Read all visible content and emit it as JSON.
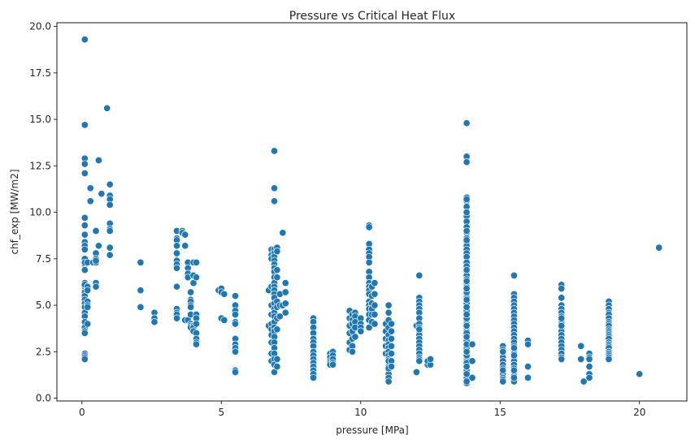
{
  "chart_data": {
    "type": "scatter",
    "title": "Pressure vs Critical Heat Flux",
    "xlabel": "pressure [MPa]",
    "ylabel": "chf_exp [MW/m2]",
    "xlim": [
      -0.9,
      21.7
    ],
    "ylim": [
      -0.15,
      20.2
    ],
    "xticks": [
      0,
      5,
      10,
      15,
      20
    ],
    "yticks": [
      0.0,
      2.5,
      5.0,
      7.5,
      10.0,
      12.5,
      15.0,
      17.5,
      20.0
    ],
    "xtick_labels": [
      "0",
      "5",
      "10",
      "15",
      "20"
    ],
    "ytick_labels": [
      "0.0",
      "2.5",
      "5.0",
      "7.5",
      "10.0",
      "12.5",
      "15.0",
      "17.5",
      "20.0"
    ],
    "grid": false,
    "legend": "none",
    "marker_color": "#1f77b4",
    "marker_edge": "#ffffff",
    "series": [
      {
        "x": [
          0.1,
          0.1,
          0.1,
          0.1,
          0.1,
          0.1,
          0.1,
          0.1,
          0.1,
          0.1,
          0.1,
          0.1,
          0.1,
          0.1,
          0.1,
          0.1,
          0.1,
          0.1,
          0.1,
          0.1,
          0.1,
          0.1,
          0.1,
          0.1,
          0.1,
          0.1,
          0.1,
          0.1,
          0.1,
          0.1,
          0.1,
          0.1,
          0.1,
          0.2,
          0.2,
          0.2,
          0.2,
          0.2,
          0.2,
          0.2,
          0.3,
          0.3,
          0.4,
          0.5,
          0.5,
          0.5,
          0.5,
          0.5,
          0.5,
          0.5,
          0.6,
          0.6,
          0.7,
          0.9,
          1.0,
          1.0,
          1.0,
          1.0,
          1.0,
          1.0,
          1.0,
          1.0,
          1.0,
          2.1,
          2.1,
          2.1,
          2.6,
          2.6,
          2.6,
          3.4,
          3.4,
          3.4,
          3.4,
          3.4,
          3.4,
          3.4,
          3.4,
          3.4,
          3.4,
          3.4,
          3.4,
          3.4,
          3.6,
          3.6,
          3.7,
          3.7,
          3.7,
          3.8,
          3.8,
          3.8,
          3.8,
          3.8,
          3.9,
          3.9,
          3.9,
          3.9,
          3.9,
          3.9,
          3.9,
          3.9,
          3.9,
          4.0,
          4.0,
          4.0,
          4.0,
          4.0,
          4.0,
          4.1,
          4.1,
          4.1,
          4.1,
          4.1,
          4.1,
          4.1,
          4.1,
          4.1,
          4.9,
          5.0,
          5.0,
          5.1,
          5.0,
          5.1,
          5.5,
          5.5,
          5.5,
          5.5,
          5.5,
          5.5,
          5.5,
          5.5,
          5.5,
          5.5,
          5.5,
          5.5,
          6.7,
          6.7,
          6.8,
          6.8,
          6.8,
          6.8,
          6.8,
          6.8,
          6.8,
          6.8,
          6.8,
          6.8,
          6.8,
          6.8,
          6.9,
          6.9,
          6.9,
          6.9,
          6.9,
          6.9,
          6.9,
          6.9,
          6.9,
          6.9,
          6.9,
          6.9,
          6.9,
          6.9,
          6.9,
          6.9,
          6.9,
          6.9,
          6.9,
          6.9,
          6.9,
          6.9,
          6.9,
          6.9,
          6.9,
          6.9,
          6.9,
          6.9,
          6.9,
          6.9,
          7.0,
          7.0,
          7.0,
          7.0,
          7.0,
          7.0,
          7.0,
          7.0,
          7.0,
          7.0,
          7.1,
          7.1,
          7.1,
          7.2,
          7.2,
          7.3,
          7.3,
          7.3,
          7.3,
          8.3,
          8.3,
          8.3,
          8.3,
          8.3,
          8.3,
          8.3,
          8.3,
          8.3,
          8.3,
          8.3,
          8.3,
          8.3,
          8.3,
          8.3,
          8.9,
          8.9,
          8.9,
          8.9,
          8.9,
          9.0,
          9.0,
          9.0,
          9.0,
          9.0,
          9.6,
          9.6,
          9.6,
          9.6,
          9.6,
          9.6,
          9.7,
          9.7,
          9.7,
          9.7,
          9.7,
          9.7,
          9.7,
          9.8,
          9.8,
          9.8,
          9.8,
          9.8,
          10.0,
          10.0,
          10.0,
          10.0,
          10.3,
          10.3,
          10.3,
          10.3,
          10.3,
          10.3,
          10.3,
          10.3,
          10.3,
          10.3,
          10.3,
          10.3,
          10.3,
          10.3,
          10.3,
          10.3,
          10.3,
          10.3,
          10.3,
          10.4,
          10.4,
          10.4,
          10.4,
          10.4,
          10.4,
          10.5,
          10.5,
          10.5,
          10.5,
          10.5,
          10.9,
          10.9,
          10.9,
          10.9,
          10.9,
          11.0,
          11.0,
          11.0,
          11.0,
          11.0,
          11.0,
          11.0,
          11.0,
          11.0,
          11.0,
          11.0,
          11.0,
          11.0,
          11.0,
          11.0,
          11.0,
          11.0,
          11.0,
          11.0,
          11.1,
          11.1,
          11.1,
          11.1,
          11.1,
          11.1,
          11.1,
          12.0,
          12.0,
          12.1,
          12.1,
          12.1,
          12.1,
          12.1,
          12.1,
          12.1,
          12.1,
          12.1,
          12.1,
          12.1,
          12.1,
          12.1,
          12.1,
          12.1,
          12.1,
          12.1,
          12.1,
          12.1,
          12.1,
          12.4,
          12.4,
          12.4,
          12.5,
          12.5,
          13.8,
          13.8,
          13.8,
          13.8,
          13.8,
          13.8,
          13.8,
          13.8,
          13.8,
          13.8,
          13.8,
          13.8,
          13.8,
          13.8,
          13.8,
          13.8,
          13.8,
          13.8,
          13.8,
          13.8,
          13.8,
          13.8,
          13.8,
          13.8,
          13.8,
          13.8,
          13.8,
          13.8,
          13.8,
          13.8,
          13.8,
          13.8,
          13.8,
          13.8,
          13.8,
          13.8,
          13.8,
          13.8,
          13.8,
          13.8,
          13.8,
          13.8,
          13.8,
          13.8,
          13.8,
          13.8,
          13.8,
          13.8,
          13.8,
          13.8,
          13.8,
          13.8,
          13.8,
          13.8,
          13.8,
          13.8,
          13.8,
          13.8,
          13.8,
          13.8,
          13.8,
          13.8,
          13.8,
          13.8,
          13.8,
          13.8,
          13.8,
          13.8,
          13.8,
          13.8,
          13.8,
          13.8,
          13.8,
          13.8,
          13.8,
          13.8,
          13.8,
          13.8,
          13.8,
          13.8,
          14.0,
          14.0,
          14.0,
          15.1,
          15.1,
          15.1,
          15.1,
          15.1,
          15.1,
          15.1,
          15.1,
          15.1,
          15.1,
          15.1,
          15.1,
          15.1,
          15.1,
          15.5,
          15.5,
          15.5,
          15.5,
          15.5,
          15.5,
          15.5,
          15.5,
          15.5,
          15.5,
          15.5,
          15.5,
          15.5,
          15.5,
          15.5,
          15.5,
          15.5,
          15.5,
          15.5,
          15.5,
          15.5,
          15.5,
          15.5,
          15.5,
          15.5,
          15.5,
          15.5,
          15.5,
          15.5,
          15.5,
          16.0,
          16.0,
          16.0,
          16.0,
          17.2,
          17.2,
          17.2,
          17.2,
          17.2,
          17.2,
          17.2,
          17.2,
          17.2,
          17.2,
          17.2,
          17.2,
          17.2,
          17.2,
          17.2,
          17.2,
          17.2,
          17.2,
          17.2,
          17.2,
          17.2,
          17.9,
          17.9,
          18.0,
          18.2,
          18.2,
          18.2,
          18.2,
          18.2,
          18.2,
          18.9,
          18.9,
          18.9,
          18.9,
          18.9,
          18.9,
          18.9,
          18.9,
          18.9,
          18.9,
          18.9,
          18.9,
          18.9,
          18.9,
          18.9,
          18.9,
          18.9,
          18.9,
          18.9,
          18.9,
          18.9,
          18.9,
          18.9,
          18.9,
          20.0,
          20.7
        ],
        "y": [
          19.3,
          14.7,
          12.9,
          12.6,
          12.1,
          9.7,
          9.3,
          8.8,
          8.4,
          8.2,
          8.0,
          7.5,
          7.2,
          6.9,
          6.2,
          6.0,
          5.7,
          5.5,
          5.3,
          5.1,
          4.9,
          4.6,
          4.4,
          4.1,
          3.8,
          3.6,
          3.5,
          2.4,
          2.3,
          2.2,
          2.1,
          6.1,
          7.3,
          6.0,
          5.2,
          5.0,
          4.9,
          4.0,
          5.8,
          7.3,
          11.3,
          10.6,
          7.3,
          9.0,
          7.8,
          7.5,
          7.3,
          6.2,
          6.0,
          7.4,
          12.8,
          8.2,
          11.0,
          15.6,
          11.5,
          10.9,
          10.7,
          10.4,
          9.4,
          9.1,
          8.1,
          7.7,
          9.0,
          7.3,
          5.8,
          4.9,
          4.6,
          4.3,
          4.1,
          9.0,
          8.6,
          8.5,
          8.2,
          7.8,
          7.4,
          7.2,
          7.0,
          6.0,
          4.8,
          4.6,
          4.5,
          4.3,
          9.0,
          8.9,
          8.8,
          8.2,
          4.2,
          7.3,
          7.0,
          6.7,
          6.5,
          4.2,
          5.7,
          5.3,
          5.2,
          5.0,
          4.9,
          4.5,
          4.0,
          3.9,
          3.8,
          7.3,
          6.6,
          6.2,
          3.9,
          3.8,
          3.6,
          7.3,
          6.5,
          4.5,
          4.3,
          4.0,
          3.5,
          3.2,
          3.0,
          2.9,
          5.8,
          5.9,
          5.7,
          5.6,
          4.3,
          4.2,
          5.5,
          5.0,
          4.7,
          4.5,
          4.1,
          4.0,
          3.2,
          2.9,
          2.7,
          2.5,
          1.5,
          1.4,
          5.8,
          3.9,
          2.4,
          8.0,
          7.7,
          7.5,
          6.0,
          5.0,
          4.5,
          4.0,
          3.7,
          3.4,
          3.0,
          2.0,
          13.3,
          11.3,
          10.6,
          8.0,
          7.8,
          7.6,
          7.4,
          7.2,
          7.0,
          6.8,
          6.5,
          6.2,
          6.0,
          5.8,
          5.6,
          5.4,
          5.1,
          4.8,
          4.6,
          4.4,
          4.1,
          3.8,
          3.6,
          3.3,
          3.0,
          2.7,
          2.4,
          2.1,
          1.8,
          1.4,
          8.1,
          7.9,
          6.9,
          6.5,
          5.2,
          4.9,
          4.3,
          3.7,
          2.1,
          1.7,
          5.6,
          5.0,
          4.4,
          8.9,
          5.0,
          6.2,
          5.7,
          5.1,
          4.6,
          4.3,
          4.1,
          3.8,
          3.5,
          3.2,
          3.0,
          2.8,
          2.5,
          2.3,
          2.1,
          1.9,
          1.7,
          1.5,
          1.3,
          1.1,
          2.4,
          2.2,
          2.0,
          1.9,
          1.8,
          2.5,
          2.3,
          2.1,
          1.9,
          1.8,
          4.7,
          4.3,
          3.9,
          3.5,
          3.0,
          2.6,
          4.5,
          4.2,
          4.0,
          3.6,
          3.2,
          2.8,
          2.5,
          4.6,
          4.4,
          4.1,
          3.8,
          3.3,
          4.3,
          4.0,
          3.8,
          3.6,
          9.3,
          9.2,
          8.3,
          8.0,
          7.8,
          7.6,
          7.3,
          6.8,
          6.5,
          6.2,
          6.0,
          5.8,
          5.6,
          5.2,
          5.0,
          4.8,
          4.5,
          4.2,
          3.8,
          6.0,
          5.5,
          5.1,
          4.8,
          4.5,
          4.1,
          6.2,
          5.6,
          5.0,
          4.5,
          4.0,
          4.0,
          3.6,
          3.2,
          2.8,
          2.4,
          5.0,
          4.6,
          4.2,
          3.8,
          3.4,
          3.1,
          2.9,
          2.7,
          2.5,
          2.3,
          2.1,
          1.9,
          1.7,
          1.5,
          1.3,
          1.1,
          0.9,
          2.0,
          1.6,
          4.0,
          3.6,
          3.2,
          2.8,
          2.4,
          2.0,
          1.7,
          3.9,
          1.4,
          6.6,
          5.4,
          5.2,
          5.0,
          4.8,
          4.6,
          4.3,
          4.0,
          3.8,
          3.6,
          3.4,
          3.2,
          3.0,
          2.8,
          2.6,
          2.4,
          2.2,
          2.1,
          2.0,
          3.7,
          1.9,
          1.8,
          2.0,
          1.8,
          2.1,
          14.8,
          13.0,
          12.7,
          10.8,
          10.6,
          10.3,
          9.8,
          9.5,
          9.2,
          8.9,
          8.6,
          8.4,
          8.2,
          8.0,
          7.8,
          7.6,
          7.3,
          7.0,
          6.8,
          6.6,
          6.4,
          6.2,
          6.0,
          5.8,
          5.6,
          5.4,
          5.2,
          5.0,
          4.8,
          4.6,
          4.4,
          4.2,
          4.0,
          3.8,
          3.6,
          3.4,
          3.2,
          3.0,
          2.8,
          2.6,
          2.4,
          2.2,
          2.0,
          1.8,
          1.6,
          1.4,
          1.2,
          1.0,
          0.8,
          10.7,
          10.0,
          9.0,
          8.5,
          7.1,
          6.3,
          5.7,
          5.1,
          4.7,
          4.3,
          3.9,
          3.5,
          3.1,
          2.7,
          2.3,
          1.9,
          1.5,
          1.1,
          0.9,
          6.9,
          5.9,
          4.9,
          3.9,
          2.9,
          1.9,
          5.3,
          4.5,
          3.3,
          2.5,
          1.7,
          1.3,
          2.9,
          2.0,
          1.1,
          2.8,
          2.6,
          2.4,
          2.2,
          2.0,
          1.8,
          1.6,
          1.4,
          1.3,
          1.1,
          1.0,
          0.9,
          2.5,
          1.5,
          6.6,
          5.6,
          5.4,
          5.2,
          5.0,
          4.8,
          4.6,
          4.4,
          4.2,
          4.0,
          3.8,
          3.6,
          3.4,
          3.2,
          3.0,
          2.8,
          2.6,
          2.4,
          2.2,
          2.0,
          1.8,
          1.6,
          1.4,
          1.2,
          1.0,
          0.9,
          2.7,
          2.3,
          1.5,
          1.1,
          3.1,
          2.9,
          1.7,
          1.1,
          6.1,
          5.9,
          5.4,
          5.0,
          4.8,
          4.6,
          4.4,
          4.2,
          4.0,
          3.8,
          3.6,
          3.4,
          3.2,
          3.0,
          2.8,
          2.6,
          2.4,
          2.2,
          2.1,
          3.9,
          4.3,
          2.8,
          2.1,
          0.9,
          2.4,
          2.2,
          2.1,
          1.7,
          1.3,
          1.1,
          5.2,
          5.0,
          4.8,
          4.6,
          4.5,
          4.3,
          4.1,
          4.0,
          3.9,
          3.7,
          3.6,
          3.5,
          3.4,
          3.3,
          3.2,
          3.0,
          2.9,
          2.8,
          2.7,
          2.5,
          2.4,
          2.3,
          2.2,
          2.1,
          1.3,
          8.1
        ]
      }
    ]
  }
}
